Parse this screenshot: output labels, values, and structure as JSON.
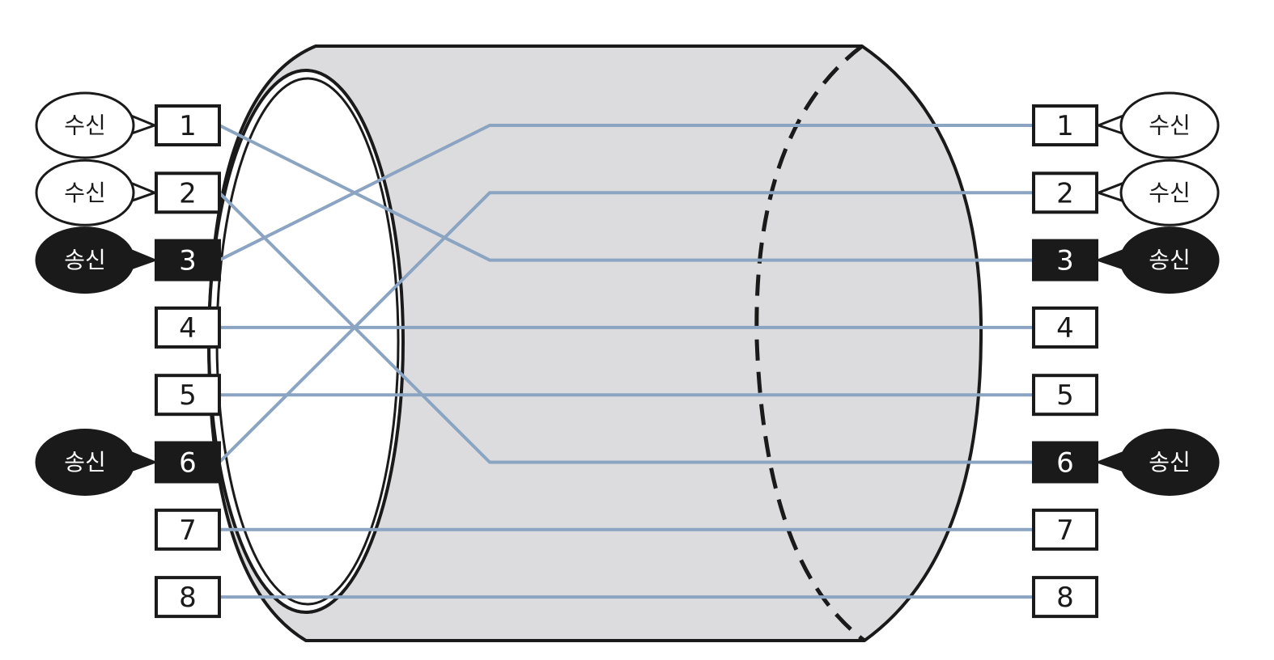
{
  "colors": {
    "background": "#ffffff",
    "cable_body": "#dcdcdf",
    "outline": "#1a1a1a",
    "wire": "#8aa4c2",
    "send_fill": "#1a1a1a",
    "receive_fill": "#ffffff"
  },
  "left": {
    "pins": [
      {
        "num": "1",
        "role": "receive",
        "label": "수신"
      },
      {
        "num": "2",
        "role": "receive",
        "label": "수신"
      },
      {
        "num": "3",
        "role": "send",
        "label": "송신"
      },
      {
        "num": "4",
        "role": "none",
        "label": ""
      },
      {
        "num": "5",
        "role": "none",
        "label": ""
      },
      {
        "num": "6",
        "role": "send",
        "label": "송신"
      },
      {
        "num": "7",
        "role": "none",
        "label": ""
      },
      {
        "num": "8",
        "role": "none",
        "label": ""
      }
    ]
  },
  "right": {
    "pins": [
      {
        "num": "1",
        "role": "receive",
        "label": "수신"
      },
      {
        "num": "2",
        "role": "receive",
        "label": "수신"
      },
      {
        "num": "3",
        "role": "send",
        "label": "송신"
      },
      {
        "num": "4",
        "role": "none",
        "label": ""
      },
      {
        "num": "5",
        "role": "none",
        "label": ""
      },
      {
        "num": "6",
        "role": "send",
        "label": "송신"
      },
      {
        "num": "7",
        "role": "none",
        "label": ""
      },
      {
        "num": "8",
        "role": "none",
        "label": ""
      }
    ]
  },
  "wires": [
    {
      "from": "1",
      "to": "3"
    },
    {
      "from": "2",
      "to": "6"
    },
    {
      "from": "3",
      "to": "1"
    },
    {
      "from": "4",
      "to": "4"
    },
    {
      "from": "5",
      "to": "5"
    },
    {
      "from": "6",
      "to": "2"
    },
    {
      "from": "7",
      "to": "7"
    },
    {
      "from": "8",
      "to": "8"
    }
  ]
}
